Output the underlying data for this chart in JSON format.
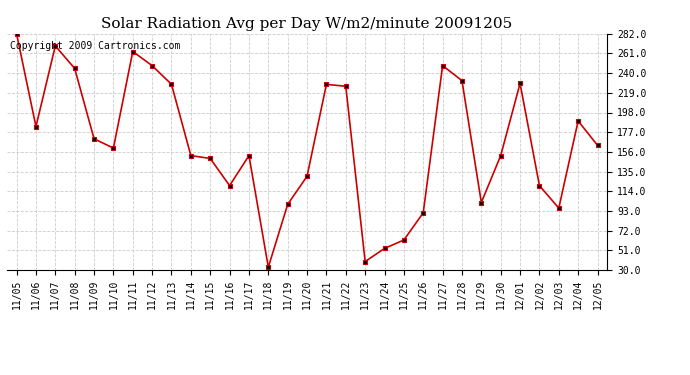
{
  "title": "Solar Radiation Avg per Day W/m2/minute 20091205",
  "copyright": "Copyright 2009 Cartronics.com",
  "dates": [
    "11/05",
    "11/06",
    "11/07",
    "11/08",
    "11/09",
    "11/10",
    "11/11",
    "11/12",
    "11/13",
    "11/14",
    "11/15",
    "11/16",
    "11/17",
    "11/18",
    "11/19",
    "11/20",
    "11/21",
    "11/22",
    "11/23",
    "11/24",
    "11/25",
    "11/26",
    "11/27",
    "11/28",
    "11/29",
    "11/30",
    "12/01",
    "12/02",
    "12/03",
    "12/04",
    "12/05"
  ],
  "values": [
    282,
    183,
    269,
    245,
    170,
    160,
    263,
    248,
    228,
    152,
    149,
    120,
    152,
    33,
    100,
    130,
    228,
    226,
    39,
    53,
    62,
    91,
    248,
    232,
    102,
    152,
    229,
    120,
    96,
    189,
    163
  ],
  "line_color": "#cc0000",
  "marker_color": "#cc0000",
  "marker_face": "#000000",
  "bg_color": "#ffffff",
  "grid_color": "#cccccc",
  "y_ticks": [
    30.0,
    51.0,
    72.0,
    93.0,
    114.0,
    135.0,
    156.0,
    177.0,
    198.0,
    219.0,
    240.0,
    261.0,
    282.0
  ],
  "ylim": [
    30.0,
    282.0
  ],
  "title_fontsize": 11,
  "tick_fontsize": 7,
  "copyright_fontsize": 7
}
